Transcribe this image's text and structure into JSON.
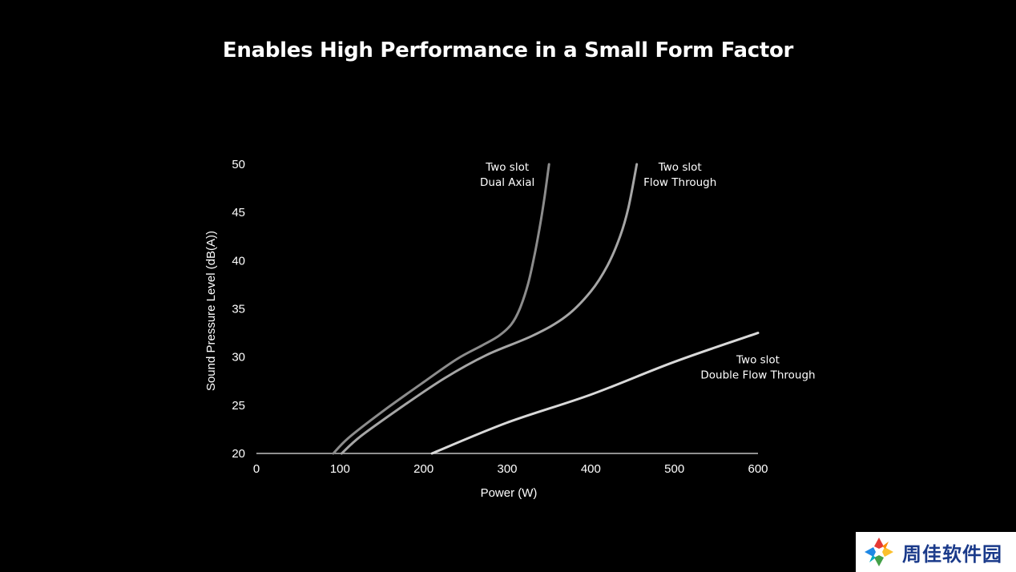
{
  "title": "Enables High Performance in a Small Form Factor",
  "watermark": {
    "text": "周佳软件园"
  },
  "colors": {
    "background": "#000000",
    "axis": "#bfbfbf",
    "text": "#ffffff",
    "series": [
      "#8c8c8c",
      "#a6a6a6",
      "#d9d9d9"
    ]
  },
  "chart_data": {
    "type": "line",
    "title": "Enables High Performance in a Small Form Factor",
    "xlabel": "Power (W)",
    "ylabel": "Sound Pressure Level (dB(A))",
    "xlim": [
      0,
      600
    ],
    "ylim": [
      20,
      50
    ],
    "xticks": [
      0,
      100,
      200,
      300,
      400,
      500,
      600
    ],
    "yticks": [
      20,
      25,
      30,
      35,
      40,
      45,
      50
    ],
    "grid": false,
    "legend": "none",
    "series": [
      {
        "name": "Two slot Dual Axial",
        "label_lines": [
          "Two slot",
          "Dual Axial"
        ],
        "points": [
          [
            92,
            20
          ],
          [
            110,
            21.6
          ],
          [
            150,
            24.3
          ],
          [
            200,
            27.4
          ],
          [
            240,
            29.8
          ],
          [
            270,
            31.2
          ],
          [
            290,
            32.2
          ],
          [
            305,
            33.4
          ],
          [
            315,
            35
          ],
          [
            325,
            37.6
          ],
          [
            333,
            40.7
          ],
          [
            340,
            44
          ],
          [
            345,
            46.8
          ],
          [
            350,
            50
          ]
        ]
      },
      {
        "name": "Two slot Flow Through",
        "label_lines": [
          "Two slot",
          "Flow Through"
        ],
        "points": [
          [
            102,
            20
          ],
          [
            125,
            21.8
          ],
          [
            175,
            24.9
          ],
          [
            225,
            27.8
          ],
          [
            275,
            30.2
          ],
          [
            330,
            32.2
          ],
          [
            370,
            34.2
          ],
          [
            400,
            36.8
          ],
          [
            420,
            39.5
          ],
          [
            435,
            42.5
          ],
          [
            445,
            45.5
          ],
          [
            455,
            50
          ]
        ]
      },
      {
        "name": "Two slot Double Flow Through",
        "label_lines": [
          "Two slot",
          "Double Flow Through"
        ],
        "points": [
          [
            210,
            20
          ],
          [
            300,
            23.2
          ],
          [
            400,
            26.1
          ],
          [
            500,
            29.5
          ],
          [
            600,
            32.5
          ]
        ]
      }
    ]
  }
}
